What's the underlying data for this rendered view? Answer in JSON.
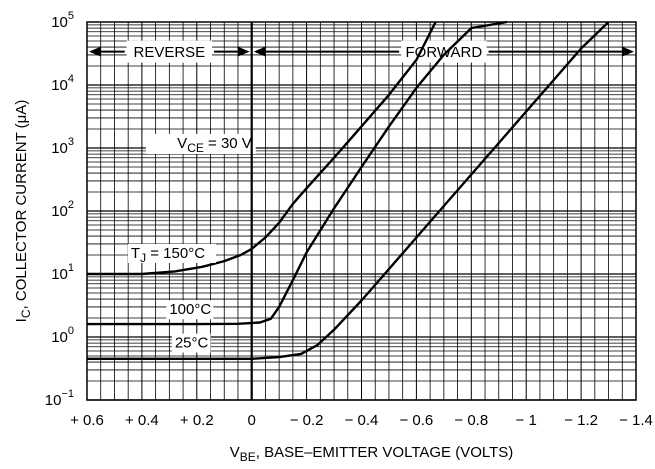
{
  "chart_data": {
    "type": "line",
    "title": "",
    "xlabel": {
      "main": "V",
      "sub": "BE",
      "rest": ", BASE–EMITTER VOLTAGE (VOLTS)"
    },
    "ylabel": {
      "main": "I",
      "sub": "C",
      "rest": ", COLLECTOR CURRENT (μA)"
    },
    "x_ticks": [
      {
        "value": 0.6,
        "label": "+ 0.6"
      },
      {
        "value": 0.4,
        "label": "+ 0.4"
      },
      {
        "value": 0.2,
        "label": "+ 0.2"
      },
      {
        "value": 0.0,
        "label": "0"
      },
      {
        "value": -0.2,
        "label": "− 0.2"
      },
      {
        "value": -0.4,
        "label": "− 0.4"
      },
      {
        "value": -0.6,
        "label": "− 0.6"
      },
      {
        "value": -0.8,
        "label": "− 0.8"
      },
      {
        "value": -1.0,
        "label": "− 1"
      },
      {
        "value": -1.2,
        "label": "− 1.2"
      },
      {
        "value": -1.4,
        "label": "− 1.4"
      }
    ],
    "y_ticks": [
      {
        "exp": -1,
        "label": "10",
        "sup": "−1"
      },
      {
        "exp": 0,
        "label": "10",
        "sup": "0"
      },
      {
        "exp": 1,
        "label": "10",
        "sup": "1"
      },
      {
        "exp": 2,
        "label": "10",
        "sup": "2"
      },
      {
        "exp": 3,
        "label": "10",
        "sup": "3"
      },
      {
        "exp": 4,
        "label": "10",
        "sup": "4"
      },
      {
        "exp": 5,
        "label": "10",
        "sup": "5"
      }
    ],
    "xlim": [
      0.6,
      -1.4
    ],
    "ylim_exp": [
      -1,
      5
    ],
    "y_scale": "log",
    "grid": true,
    "regions": [
      {
        "label": "REVERSE",
        "from": 0.6,
        "to": 0.0
      },
      {
        "label": "FORWARD",
        "from": 0.0,
        "to": -1.4
      }
    ],
    "annotations": [
      {
        "text": "V",
        "sub": "CE",
        "rest": " = 30 V",
        "x": -0.015,
        "y": 1000
      }
    ],
    "series": [
      {
        "name": "T",
        "sub": "J",
        "rest": " = 150°C",
        "label_at": {
          "x": 0.44,
          "y": 18
        },
        "points": [
          [
            0.6,
            10
          ],
          [
            0.4,
            10
          ],
          [
            0.28,
            11
          ],
          [
            0.18,
            13
          ],
          [
            0.1,
            16
          ],
          [
            0.04,
            20
          ],
          [
            0.0,
            25
          ],
          [
            -0.05,
            38
          ],
          [
            -0.1,
            65
          ],
          [
            -0.15,
            130
          ],
          [
            -0.2,
            230
          ],
          [
            -0.3,
            700
          ],
          [
            -0.4,
            2200
          ],
          [
            -0.5,
            7000
          ],
          [
            -0.6,
            25000
          ],
          [
            -0.67,
            100000
          ]
        ]
      },
      {
        "name": "100°C",
        "label_at": {
          "x": 0.3,
          "y": 2.3
        },
        "points": [
          [
            0.6,
            1.6
          ],
          [
            0.2,
            1.6
          ],
          [
            0.05,
            1.62
          ],
          [
            -0.03,
            1.7
          ],
          [
            -0.07,
            1.95
          ],
          [
            -0.1,
            3
          ],
          [
            -0.15,
            8
          ],
          [
            -0.2,
            22
          ],
          [
            -0.3,
            110
          ],
          [
            -0.4,
            500
          ],
          [
            -0.5,
            2200
          ],
          [
            -0.6,
            9000
          ],
          [
            -0.7,
            30000
          ],
          [
            -0.8,
            80000
          ],
          [
            -0.93,
            100000
          ]
        ]
      },
      {
        "name": "25°C",
        "label_at": {
          "x": 0.28,
          "y": 0.68
        },
        "points": [
          [
            0.6,
            0.45
          ],
          [
            0.2,
            0.45
          ],
          [
            0.0,
            0.45
          ],
          [
            -0.1,
            0.48
          ],
          [
            -0.18,
            0.54
          ],
          [
            -0.24,
            0.75
          ],
          [
            -0.3,
            1.3
          ],
          [
            -0.4,
            3.8
          ],
          [
            -0.5,
            12
          ],
          [
            -0.6,
            38
          ],
          [
            -0.7,
            120
          ],
          [
            -0.8,
            380
          ],
          [
            -0.9,
            1200
          ],
          [
            -1.0,
            3800
          ],
          [
            -1.1,
            12000
          ],
          [
            -1.2,
            38000
          ],
          [
            -1.3,
            100000
          ]
        ]
      }
    ]
  }
}
